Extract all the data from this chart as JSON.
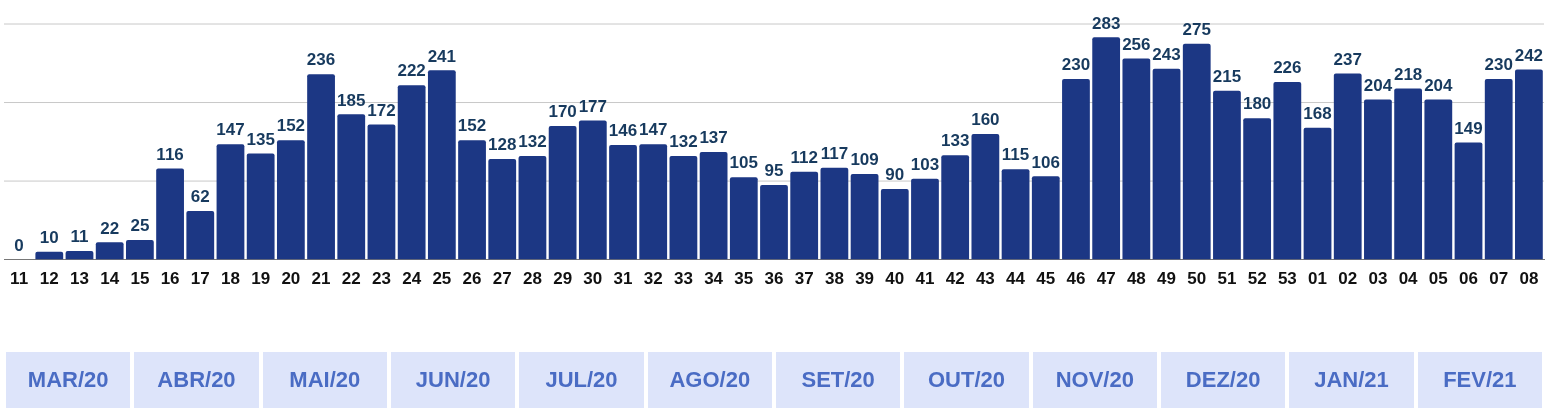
{
  "chart_data": {
    "type": "bar",
    "categories": [
      "11",
      "12",
      "13",
      "14",
      "15",
      "16",
      "17",
      "18",
      "19",
      "20",
      "21",
      "22",
      "23",
      "24",
      "25",
      "26",
      "27",
      "28",
      "29",
      "30",
      "31",
      "32",
      "33",
      "34",
      "35",
      "36",
      "37",
      "38",
      "39",
      "40",
      "41",
      "42",
      "43",
      "44",
      "45",
      "46",
      "47",
      "48",
      "49",
      "50",
      "51",
      "52",
      "53",
      "01",
      "02",
      "03",
      "04",
      "05",
      "06",
      "07",
      "08"
    ],
    "values": [
      0,
      10,
      11,
      22,
      25,
      116,
      62,
      147,
      135,
      152,
      236,
      185,
      172,
      222,
      241,
      152,
      128,
      132,
      170,
      177,
      146,
      147,
      132,
      137,
      105,
      95,
      112,
      117,
      109,
      90,
      103,
      133,
      160,
      115,
      106,
      230,
      283,
      256,
      243,
      275,
      215,
      180,
      226,
      168,
      237,
      204,
      218,
      204,
      149,
      230,
      242
    ],
    "color": "#1c3784",
    "ref_lines": [
      {
        "axis": "y",
        "value": 100,
        "color": "#c8c8c8"
      },
      {
        "axis": "y",
        "value": 200,
        "color": "#c8c8c8"
      },
      {
        "axis": "y",
        "value": 300,
        "color": "#c8c8c8"
      }
    ],
    "tick_labels": "x",
    "data_labels": true,
    "annotations": [
      "MAR/20",
      "ABR/20",
      "MAI/20",
      "JUN/20",
      "JUL/20",
      "AGO/20",
      "SET/20",
      "OUT/20",
      "NOV/20",
      "DEZ/20",
      "JAN/21",
      "FEV/21"
    ]
  }
}
